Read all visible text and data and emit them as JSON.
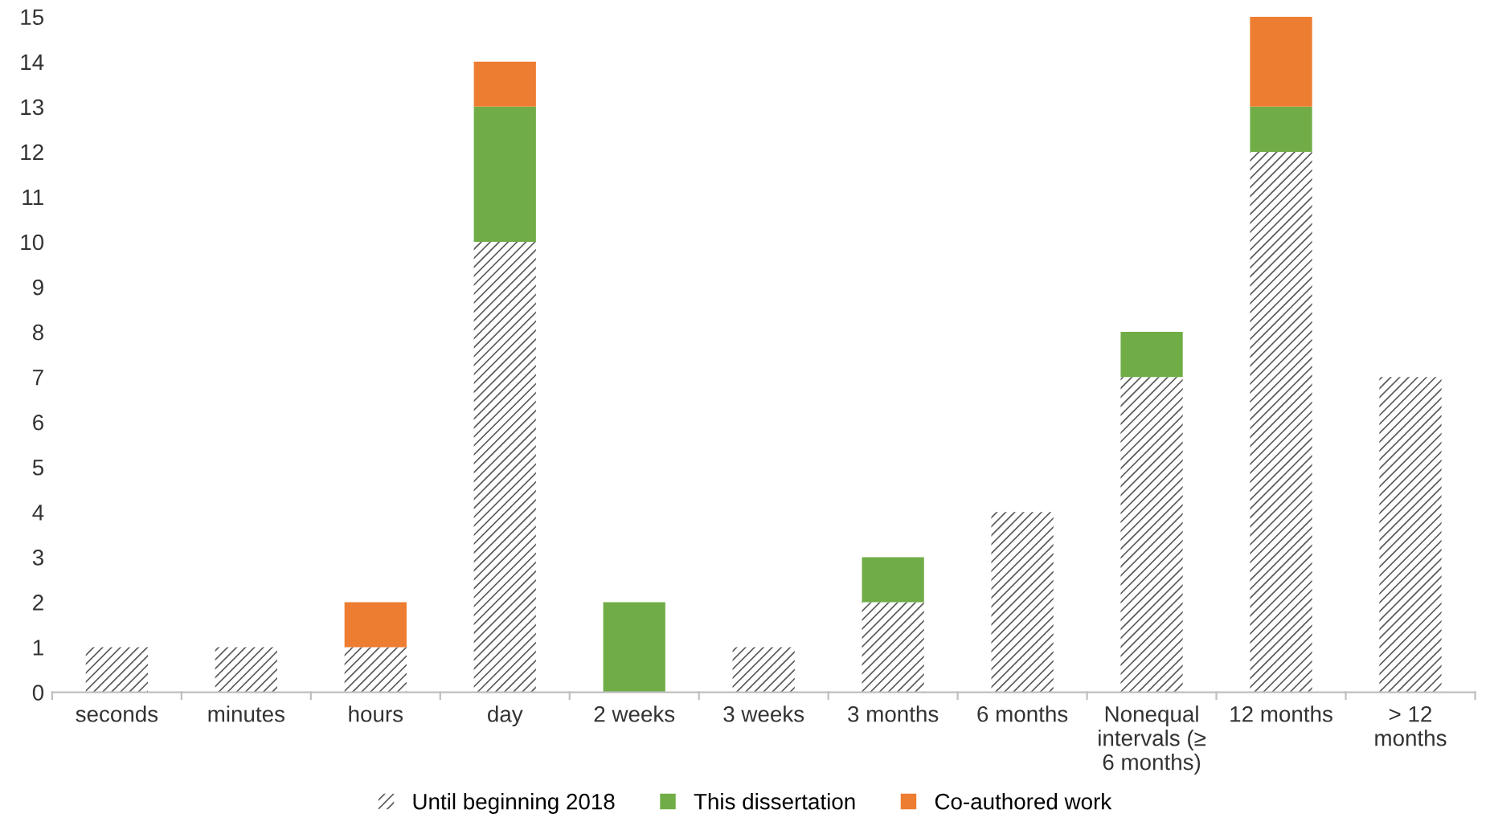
{
  "chart_data": {
    "type": "bar",
    "stacked": true,
    "categories": [
      "seconds",
      "minutes",
      "hours",
      "day",
      "2 weeks",
      "3 weeks",
      "3 months",
      "6 months",
      "Nonequal\nintervals (≥\n6 months)",
      "12 months",
      "> 12\nmonths"
    ],
    "series": [
      {
        "name": "Until beginning 2018",
        "color": "#595959",
        "values": [
          1,
          1,
          1,
          10,
          0,
          1,
          2,
          4,
          7,
          12,
          7
        ]
      },
      {
        "name": "This dissertation",
        "color": "#70ad47",
        "values": [
          0,
          0,
          0,
          3,
          2,
          0,
          1,
          0,
          1,
          1,
          0
        ]
      },
      {
        "name": "Co-authored work",
        "color": "#ed7d31",
        "values": [
          0,
          0,
          1,
          1,
          0,
          0,
          0,
          0,
          0,
          2,
          0
        ]
      }
    ],
    "ylim": [
      0,
      15
    ],
    "yticks": [
      0,
      1,
      2,
      3,
      4,
      5,
      6,
      7,
      8,
      9,
      10,
      11,
      12,
      13,
      14,
      15
    ],
    "grid": false,
    "legend": "bottom"
  }
}
